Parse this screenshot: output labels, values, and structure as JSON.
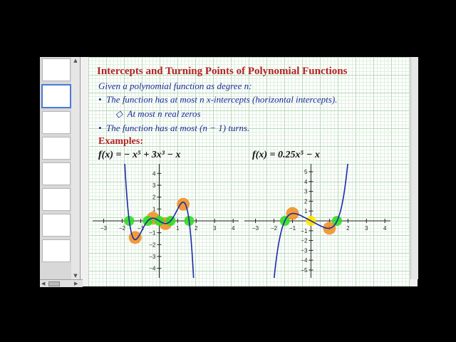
{
  "page": {
    "title": "Intercepts and Turning Points of Polynomial Functions",
    "intro": "Given a polynomial function as degree n:",
    "bullet1": "The function has at most n x-intercepts (horizontal intercepts).",
    "bullet2": "At most n real zeros",
    "bullet3": "The function has at most (n − 1) turns.",
    "examples_label": "Examples:",
    "eq1": "f(x) = − x⁵ + 3x³ − x",
    "eq2": "f(x) = 0.25x⁵ − x"
  },
  "icons": {
    "bullet": "•",
    "sub_bullet": "◇",
    "scroll_up": "▲",
    "scroll_down": "▼",
    "scroll_left": "◀",
    "scroll_right": "▶"
  },
  "colors": {
    "title": "#b22222",
    "body_text": "#1a2c9a",
    "curve": "#1b2aa8",
    "x_intercept_marker": "#33dd22",
    "turning_point_marker": "#f08c1a",
    "origin_marker": "#ffe600",
    "annotation_circle": "#33c6e0"
  },
  "chart_data": [
    {
      "type": "line",
      "function": "f(x) = -x^5 + 3x^3 - x",
      "x_ticks": [
        "−3",
        "−2",
        "−1",
        "1",
        "2",
        "3",
        "4"
      ],
      "y_ticks": [
        "4",
        "3",
        "2",
        "1",
        "−1",
        "−2",
        "−3",
        "−4"
      ],
      "xlim": [
        -3.6,
        4.3
      ],
      "ylim": [
        -4.8,
        4.8
      ],
      "grid": true,
      "x_intercepts": [
        -1.62,
        -0.62,
        0,
        0.62,
        1.62
      ],
      "turning_points": [
        [
          -1.3,
          -1.4
        ],
        [
          -0.34,
          0.23
        ],
        [
          0.34,
          -0.23
        ],
        [
          1.3,
          1.4
        ]
      ]
    },
    {
      "type": "line",
      "function": "f(x) = 0.25x^5 - x",
      "x_ticks": [
        "−3",
        "−2",
        "−1",
        "1",
        "2",
        "3",
        "4"
      ],
      "y_ticks": [
        "5",
        "4",
        "3",
        "2",
        "1",
        "−1",
        "−2",
        "−3",
        "−4",
        "−5"
      ],
      "xlim": [
        -3.6,
        4.3
      ],
      "ylim": [
        -5.8,
        5.8
      ],
      "grid": true,
      "x_intercepts": [
        -1.41,
        0,
        1.41
      ],
      "turning_points": [
        [
          -1,
          0.75
        ],
        [
          1,
          -0.75
        ]
      ]
    }
  ]
}
